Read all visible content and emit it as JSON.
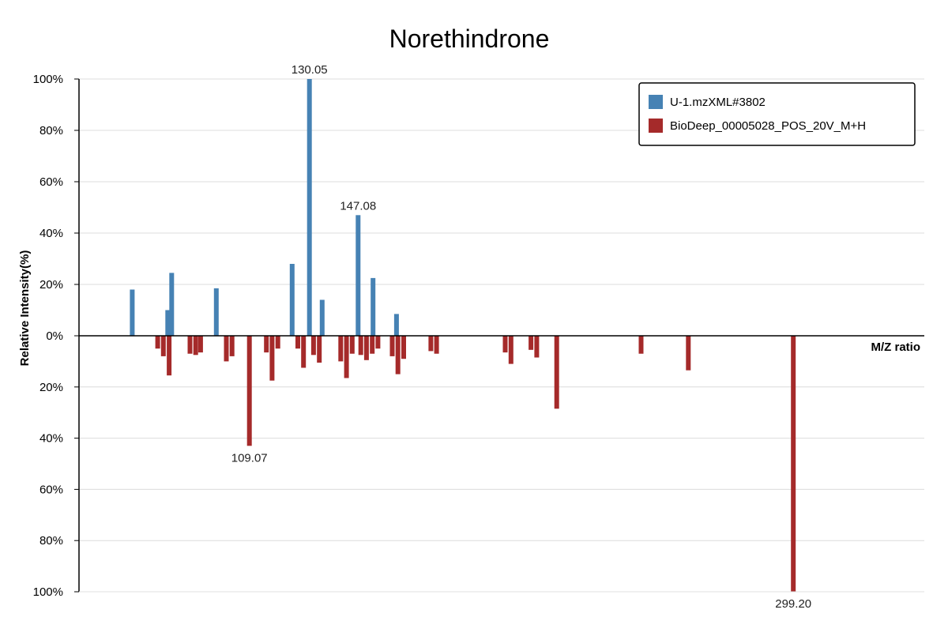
{
  "chart_data": {
    "type": "bar",
    "title": "Norethindrone",
    "xlabel": "M/Z ratio",
    "ylabel": "Relative Intensity(%)",
    "ylim_top": [
      0,
      100
    ],
    "ylim_bottom": [
      0,
      100
    ],
    "y_ticks_top": [
      "100%",
      "80%",
      "60%",
      "40%",
      "20%",
      "0%"
    ],
    "y_ticks_bottom": [
      "20%",
      "40%",
      "60%",
      "80%",
      "100%"
    ],
    "xlim": [
      49.5,
      345
    ],
    "grid": true,
    "legend_position": "top-right",
    "series": [
      {
        "name": "U-1.mzXML#3802",
        "color": "#4682B4",
        "direction": "up",
        "peaks": [
          {
            "mz": 68.1,
            "intensity": 18
          },
          {
            "mz": 80.5,
            "intensity": 10
          },
          {
            "mz": 81.9,
            "intensity": 24.5
          },
          {
            "mz": 97.5,
            "intensity": 18.5
          },
          {
            "mz": 124.0,
            "intensity": 28
          },
          {
            "mz": 130.05,
            "intensity": 100
          },
          {
            "mz": 134.5,
            "intensity": 14
          },
          {
            "mz": 147.08,
            "intensity": 47
          },
          {
            "mz": 152.3,
            "intensity": 22.5
          },
          {
            "mz": 160.5,
            "intensity": 8.5
          }
        ]
      },
      {
        "name": "BioDeep_00005028_POS_20V_M+H",
        "color": "#A52A2A",
        "direction": "down",
        "peaks": [
          {
            "mz": 77.0,
            "intensity": 5
          },
          {
            "mz": 79.0,
            "intensity": 8
          },
          {
            "mz": 81.0,
            "intensity": 15.5
          },
          {
            "mz": 88.3,
            "intensity": 7
          },
          {
            "mz": 90.3,
            "intensity": 7.5
          },
          {
            "mz": 92.0,
            "intensity": 6.5
          },
          {
            "mz": 101.0,
            "intensity": 10
          },
          {
            "mz": 103.0,
            "intensity": 8
          },
          {
            "mz": 109.07,
            "intensity": 43
          },
          {
            "mz": 115.0,
            "intensity": 6.5
          },
          {
            "mz": 117.0,
            "intensity": 17.5
          },
          {
            "mz": 119.0,
            "intensity": 5
          },
          {
            "mz": 126.0,
            "intensity": 5
          },
          {
            "mz": 128.0,
            "intensity": 12.5
          },
          {
            "mz": 131.5,
            "intensity": 7.5
          },
          {
            "mz": 133.5,
            "intensity": 10.5
          },
          {
            "mz": 141.0,
            "intensity": 10
          },
          {
            "mz": 143.0,
            "intensity": 16.5
          },
          {
            "mz": 145.0,
            "intensity": 7
          },
          {
            "mz": 148.0,
            "intensity": 7.5
          },
          {
            "mz": 150.0,
            "intensity": 9.5
          },
          {
            "mz": 152.0,
            "intensity": 7
          },
          {
            "mz": 154.0,
            "intensity": 5
          },
          {
            "mz": 159.0,
            "intensity": 8
          },
          {
            "mz": 161.0,
            "intensity": 15
          },
          {
            "mz": 163.0,
            "intensity": 9
          },
          {
            "mz": 172.5,
            "intensity": 6
          },
          {
            "mz": 174.5,
            "intensity": 7
          },
          {
            "mz": 198.5,
            "intensity": 6.5
          },
          {
            "mz": 200.5,
            "intensity": 11
          },
          {
            "mz": 207.5,
            "intensity": 5.5
          },
          {
            "mz": 209.5,
            "intensity": 8.5
          },
          {
            "mz": 216.5,
            "intensity": 28.5
          },
          {
            "mz": 246.0,
            "intensity": 7
          },
          {
            "mz": 262.5,
            "intensity": 13.5
          },
          {
            "mz": 299.2,
            "intensity": 100
          }
        ]
      }
    ],
    "peak_labels": [
      {
        "text": "130.05",
        "series": 0,
        "mz": 130.05
      },
      {
        "text": "147.08",
        "series": 0,
        "mz": 147.08
      },
      {
        "text": "109.07",
        "series": 1,
        "mz": 109.07
      },
      {
        "text": "299.20",
        "series": 1,
        "mz": 299.2
      }
    ]
  }
}
